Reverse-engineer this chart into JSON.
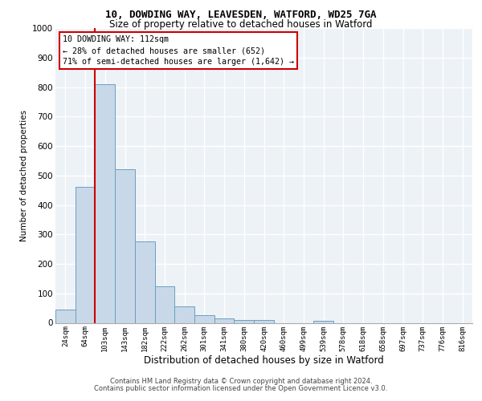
{
  "title1": "10, DOWDING WAY, LEAVESDEN, WATFORD, WD25 7GA",
  "title2": "Size of property relative to detached houses in Watford",
  "xlabel": "Distribution of detached houses by size in Watford",
  "ylabel": "Number of detached properties",
  "bar_labels": [
    "24sqm",
    "64sqm",
    "103sqm",
    "143sqm",
    "182sqm",
    "222sqm",
    "262sqm",
    "301sqm",
    "341sqm",
    "380sqm",
    "420sqm",
    "460sqm",
    "499sqm",
    "539sqm",
    "578sqm",
    "618sqm",
    "658sqm",
    "697sqm",
    "737sqm",
    "776sqm",
    "816sqm"
  ],
  "bar_values": [
    45,
    460,
    810,
    520,
    275,
    125,
    57,
    27,
    15,
    10,
    10,
    0,
    0,
    8,
    0,
    0,
    0,
    0,
    0,
    0,
    0
  ],
  "bar_color": "#c8d8e8",
  "bar_edge_color": "#6a9fc0",
  "annotation_title": "10 DOWDING WAY: 112sqm",
  "annotation_line1": "← 28% of detached houses are smaller (652)",
  "annotation_line2": "71% of semi-detached houses are larger (1,642) →",
  "vline_color": "#cc0000",
  "vline_x": 1.5,
  "ylim_max": 1000,
  "background_color": "#edf2f7",
  "grid_color": "#ffffff",
  "footer1": "Contains HM Land Registry data © Crown copyright and database right 2024.",
  "footer2": "Contains public sector information licensed under the Open Government Licence v3.0."
}
